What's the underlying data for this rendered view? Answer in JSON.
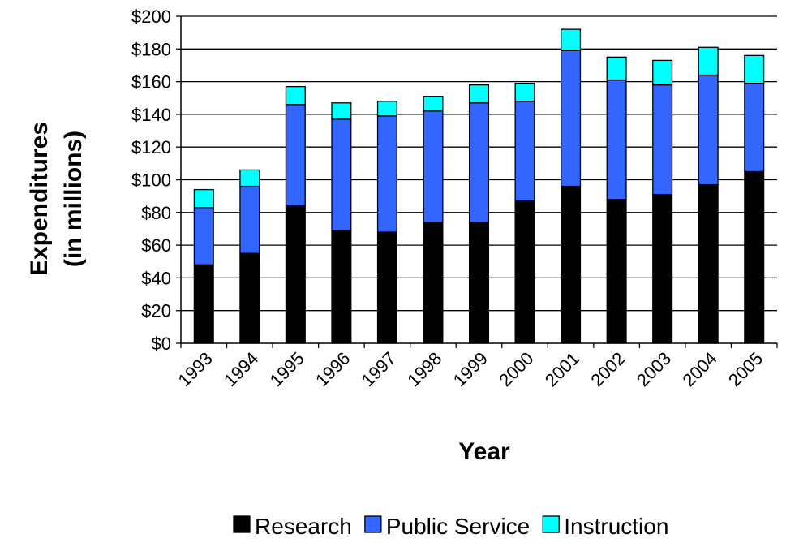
{
  "chart_data": {
    "type": "bar",
    "stacked": true,
    "categories": [
      "1993",
      "1994",
      "1995",
      "1996",
      "1997",
      "1998",
      "1999",
      "2000",
      "2001",
      "2002",
      "2003",
      "2004",
      "2005"
    ],
    "series": [
      {
        "name": "Research",
        "color": "#000000",
        "values": [
          48,
          55,
          84,
          69,
          68,
          74,
          74,
          87,
          96,
          88,
          91,
          97,
          105
        ]
      },
      {
        "name": "Public Service",
        "color": "#3366FF",
        "values": [
          35,
          41,
          62,
          68,
          71,
          68,
          73,
          61,
          83,
          73,
          67,
          67,
          54
        ]
      },
      {
        "name": "Instruction",
        "color": "#00FFFF",
        "values": [
          11,
          10,
          11,
          10,
          9,
          9,
          11,
          11,
          13,
          14,
          15,
          17,
          17
        ]
      }
    ],
    "xlabel": "Year",
    "ylabel": [
      "Expenditures",
      "(in millions)"
    ],
    "ylim": [
      0,
      200
    ],
    "yticks": [
      0,
      20,
      40,
      60,
      80,
      100,
      120,
      140,
      160,
      180,
      200
    ],
    "ytick_labels": [
      "$0",
      "$20",
      "$40",
      "$60",
      "$80",
      "$100",
      "$120",
      "$140",
      "$160",
      "$180",
      "$200"
    ],
    "grid": "horizontal",
    "legend_position": "bottom"
  }
}
